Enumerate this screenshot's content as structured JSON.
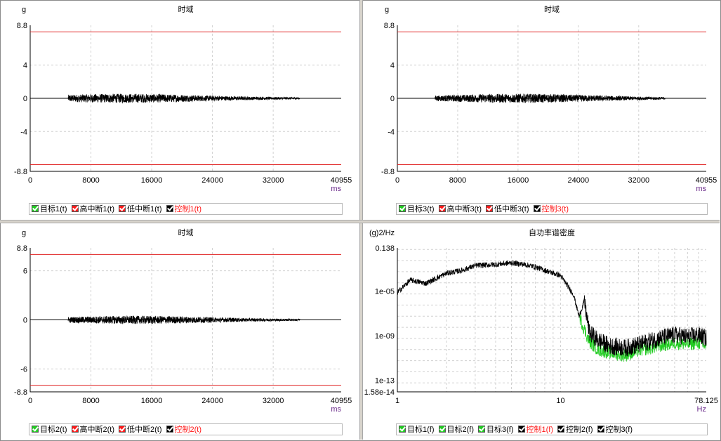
{
  "panels": [
    {
      "id": "p1",
      "title": "时域",
      "y_unit": "g",
      "x_unit": "ms",
      "legend": [
        {
          "label": "目标1(t)",
          "color": "#22cc22",
          "text_color": "#000000"
        },
        {
          "label": "高中断1(t)",
          "color": "#ff1a1a",
          "text_color": "#000000"
        },
        {
          "label": "低中断1(t)",
          "color": "#ff1a1a",
          "text_color": "#000000"
        },
        {
          "label": "控制1(t)",
          "color": "#000000",
          "text_color": "#ff1a1a"
        }
      ]
    },
    {
      "id": "p2",
      "title": "时域",
      "y_unit": "g",
      "x_unit": "ms",
      "legend": [
        {
          "label": "目标3(t)",
          "color": "#22cc22",
          "text_color": "#000000"
        },
        {
          "label": "高中断3(t)",
          "color": "#ff1a1a",
          "text_color": "#000000"
        },
        {
          "label": "低中断3(t)",
          "color": "#ff1a1a",
          "text_color": "#000000"
        },
        {
          "label": "控制3(t)",
          "color": "#000000",
          "text_color": "#ff1a1a"
        }
      ]
    },
    {
      "id": "p3",
      "title": "时域",
      "y_unit": "g",
      "x_unit": "ms",
      "legend": [
        {
          "label": "目标2(t)",
          "color": "#22cc22",
          "text_color": "#000000"
        },
        {
          "label": "高中断2(t)",
          "color": "#ff1a1a",
          "text_color": "#000000"
        },
        {
          "label": "低中断2(t)",
          "color": "#ff1a1a",
          "text_color": "#000000"
        },
        {
          "label": "控制2(t)",
          "color": "#000000",
          "text_color": "#ff1a1a"
        }
      ]
    },
    {
      "id": "p4",
      "title": "自功率谱密度",
      "y_unit": "(g)2/Hz",
      "x_unit": "Hz",
      "legend": [
        {
          "label": "目标1(f)",
          "color": "#22cc22",
          "text_color": "#000000"
        },
        {
          "label": "目标2(f)",
          "color": "#22cc22",
          "text_color": "#000000"
        },
        {
          "label": "目标3(f)",
          "color": "#22cc22",
          "text_color": "#000000"
        },
        {
          "label": "控制1(f)",
          "color": "#000000",
          "text_color": "#ff1a1a"
        },
        {
          "label": "控制2(f)",
          "color": "#000000",
          "text_color": "#000000"
        },
        {
          "label": "控制3(f)",
          "color": "#000000",
          "text_color": "#000000"
        }
      ]
    }
  ],
  "chart_data": [
    {
      "type": "line",
      "title": "时域",
      "ylabel": "g",
      "xlabel": "ms",
      "xlim": [
        0,
        40955
      ],
      "ylim": [
        -8.8,
        8.8
      ],
      "x_ticks": [
        "0",
        "8000",
        "16000",
        "24000",
        "32000",
        "40955"
      ],
      "y_ticks": [
        "8.8",
        "4",
        "0",
        "-4",
        "-8.8"
      ],
      "y_tick_values": [
        8.8,
        4,
        0,
        -4,
        -8.8
      ],
      "grid": true,
      "series": [
        {
          "name": "高中断1(t)",
          "color": "#e02020",
          "x": [
            0,
            40955
          ],
          "values": [
            8.0,
            8.0
          ]
        },
        {
          "name": "低中断1(t)",
          "color": "#e02020",
          "x": [
            0,
            40955
          ],
          "values": [
            -8.0,
            -8.0
          ]
        },
        {
          "name": "目标1(t)",
          "color": "#000000",
          "x": [
            0,
            40955
          ],
          "values": [
            0,
            0
          ]
        },
        {
          "name": "控制1(t)",
          "color": "#000000",
          "signal": {
            "start": 5000,
            "end": 35500,
            "peak": 0.55,
            "center": 12500
          }
        }
      ]
    },
    {
      "type": "line",
      "title": "时域",
      "ylabel": "g",
      "xlabel": "ms",
      "xlim": [
        0,
        40955
      ],
      "ylim": [
        -8.8,
        8.8
      ],
      "x_ticks": [
        "0",
        "8000",
        "16000",
        "24000",
        "32000",
        "40955"
      ],
      "y_ticks": [
        "8.8",
        "4",
        "0",
        "-4",
        "-8.8"
      ],
      "y_tick_values": [
        8.8,
        4,
        0,
        -4,
        -8.8
      ],
      "grid": true,
      "series": [
        {
          "name": "高中断3(t)",
          "color": "#e02020",
          "x": [
            0,
            40955
          ],
          "values": [
            8.0,
            8.0
          ]
        },
        {
          "name": "低中断3(t)",
          "color": "#e02020",
          "x": [
            0,
            40955
          ],
          "values": [
            -8.0,
            -8.0
          ]
        },
        {
          "name": "目标3(t)",
          "color": "#000000",
          "x": [
            0,
            40955
          ],
          "values": [
            0,
            0
          ]
        },
        {
          "name": "控制3(t)",
          "color": "#000000",
          "signal": {
            "start": 5000,
            "end": 35500,
            "peak": 0.55,
            "center": 16000
          }
        }
      ]
    },
    {
      "type": "line",
      "title": "时域",
      "ylabel": "g",
      "xlabel": "ms",
      "xlim": [
        0,
        40955
      ],
      "ylim": [
        -8.8,
        8.8
      ],
      "x_ticks": [
        "0",
        "8000",
        "16000",
        "24000",
        "32000",
        "40955"
      ],
      "y_ticks": [
        "8.8",
        "6",
        "0",
        "-6",
        "-8.8"
      ],
      "y_tick_values": [
        8.8,
        6,
        0,
        -6,
        -8.8
      ],
      "grid": true,
      "series": [
        {
          "name": "高中断2(t)",
          "color": "#e02020",
          "x": [
            0,
            40955
          ],
          "values": [
            8.0,
            8.0
          ]
        },
        {
          "name": "低中断2(t)",
          "color": "#e02020",
          "x": [
            0,
            40955
          ],
          "values": [
            -8.0,
            -8.0
          ]
        },
        {
          "name": "目标2(t)",
          "color": "#000000",
          "x": [
            0,
            40955
          ],
          "values": [
            0,
            0
          ]
        },
        {
          "name": "控制2(t)",
          "color": "#000000",
          "signal": {
            "start": 5000,
            "end": 35500,
            "peak": 0.5,
            "center": 14000
          }
        }
      ]
    },
    {
      "type": "line",
      "title": "自功率谱密度",
      "ylabel": "(g)2/Hz",
      "xlabel": "Hz",
      "x_scale": "log",
      "y_scale": "log",
      "xlim": [
        1,
        78.125
      ],
      "ylim": [
        1.58e-14,
        0.138
      ],
      "x_ticks": [
        "1",
        "10",
        "78.125"
      ],
      "x_tick_values": [
        1,
        10,
        78.125
      ],
      "y_ticks": [
        "0.138",
        "1e-05",
        "1e-09",
        "1e-13",
        "1.58e-14"
      ],
      "y_tick_values": [
        0.138,
        1e-05,
        1e-09,
        1e-13,
        1.58e-14
      ],
      "grid": true,
      "series": [
        {
          "name": "控制(f)",
          "color": "#000000",
          "x": [
            1,
            1.2,
            1.5,
            2,
            2.5,
            3,
            4,
            5,
            6,
            7,
            8,
            10,
            12,
            13,
            14,
            15,
            17,
            20,
            25,
            30,
            40,
            50,
            60,
            70,
            78.125
          ],
          "values": [
            1.5e-05,
            0.0002,
            0.0001,
            0.0008,
            0.0015,
            0.004,
            0.005,
            0.007,
            0.005,
            0.003,
            0.0015,
            0.0005,
            1e-05,
            1e-07,
            3e-06,
            5e-09,
            1e-09,
            3e-10,
            2e-10,
            4e-10,
            1.5e-09,
            3e-09,
            2e-09,
            3e-09,
            1.5e-09
          ]
        },
        {
          "name": "目标(f)",
          "color": "#22cc22",
          "x": [
            13,
            15,
            17,
            20,
            25,
            30,
            40,
            50,
            60,
            70,
            78.125
          ],
          "values": [
            1e-07,
            5e-10,
            1e-10,
            5e-11,
            3e-11,
            8e-11,
            2e-10,
            4e-10,
            3e-10,
            4e-10,
            2e-10
          ]
        }
      ]
    }
  ]
}
